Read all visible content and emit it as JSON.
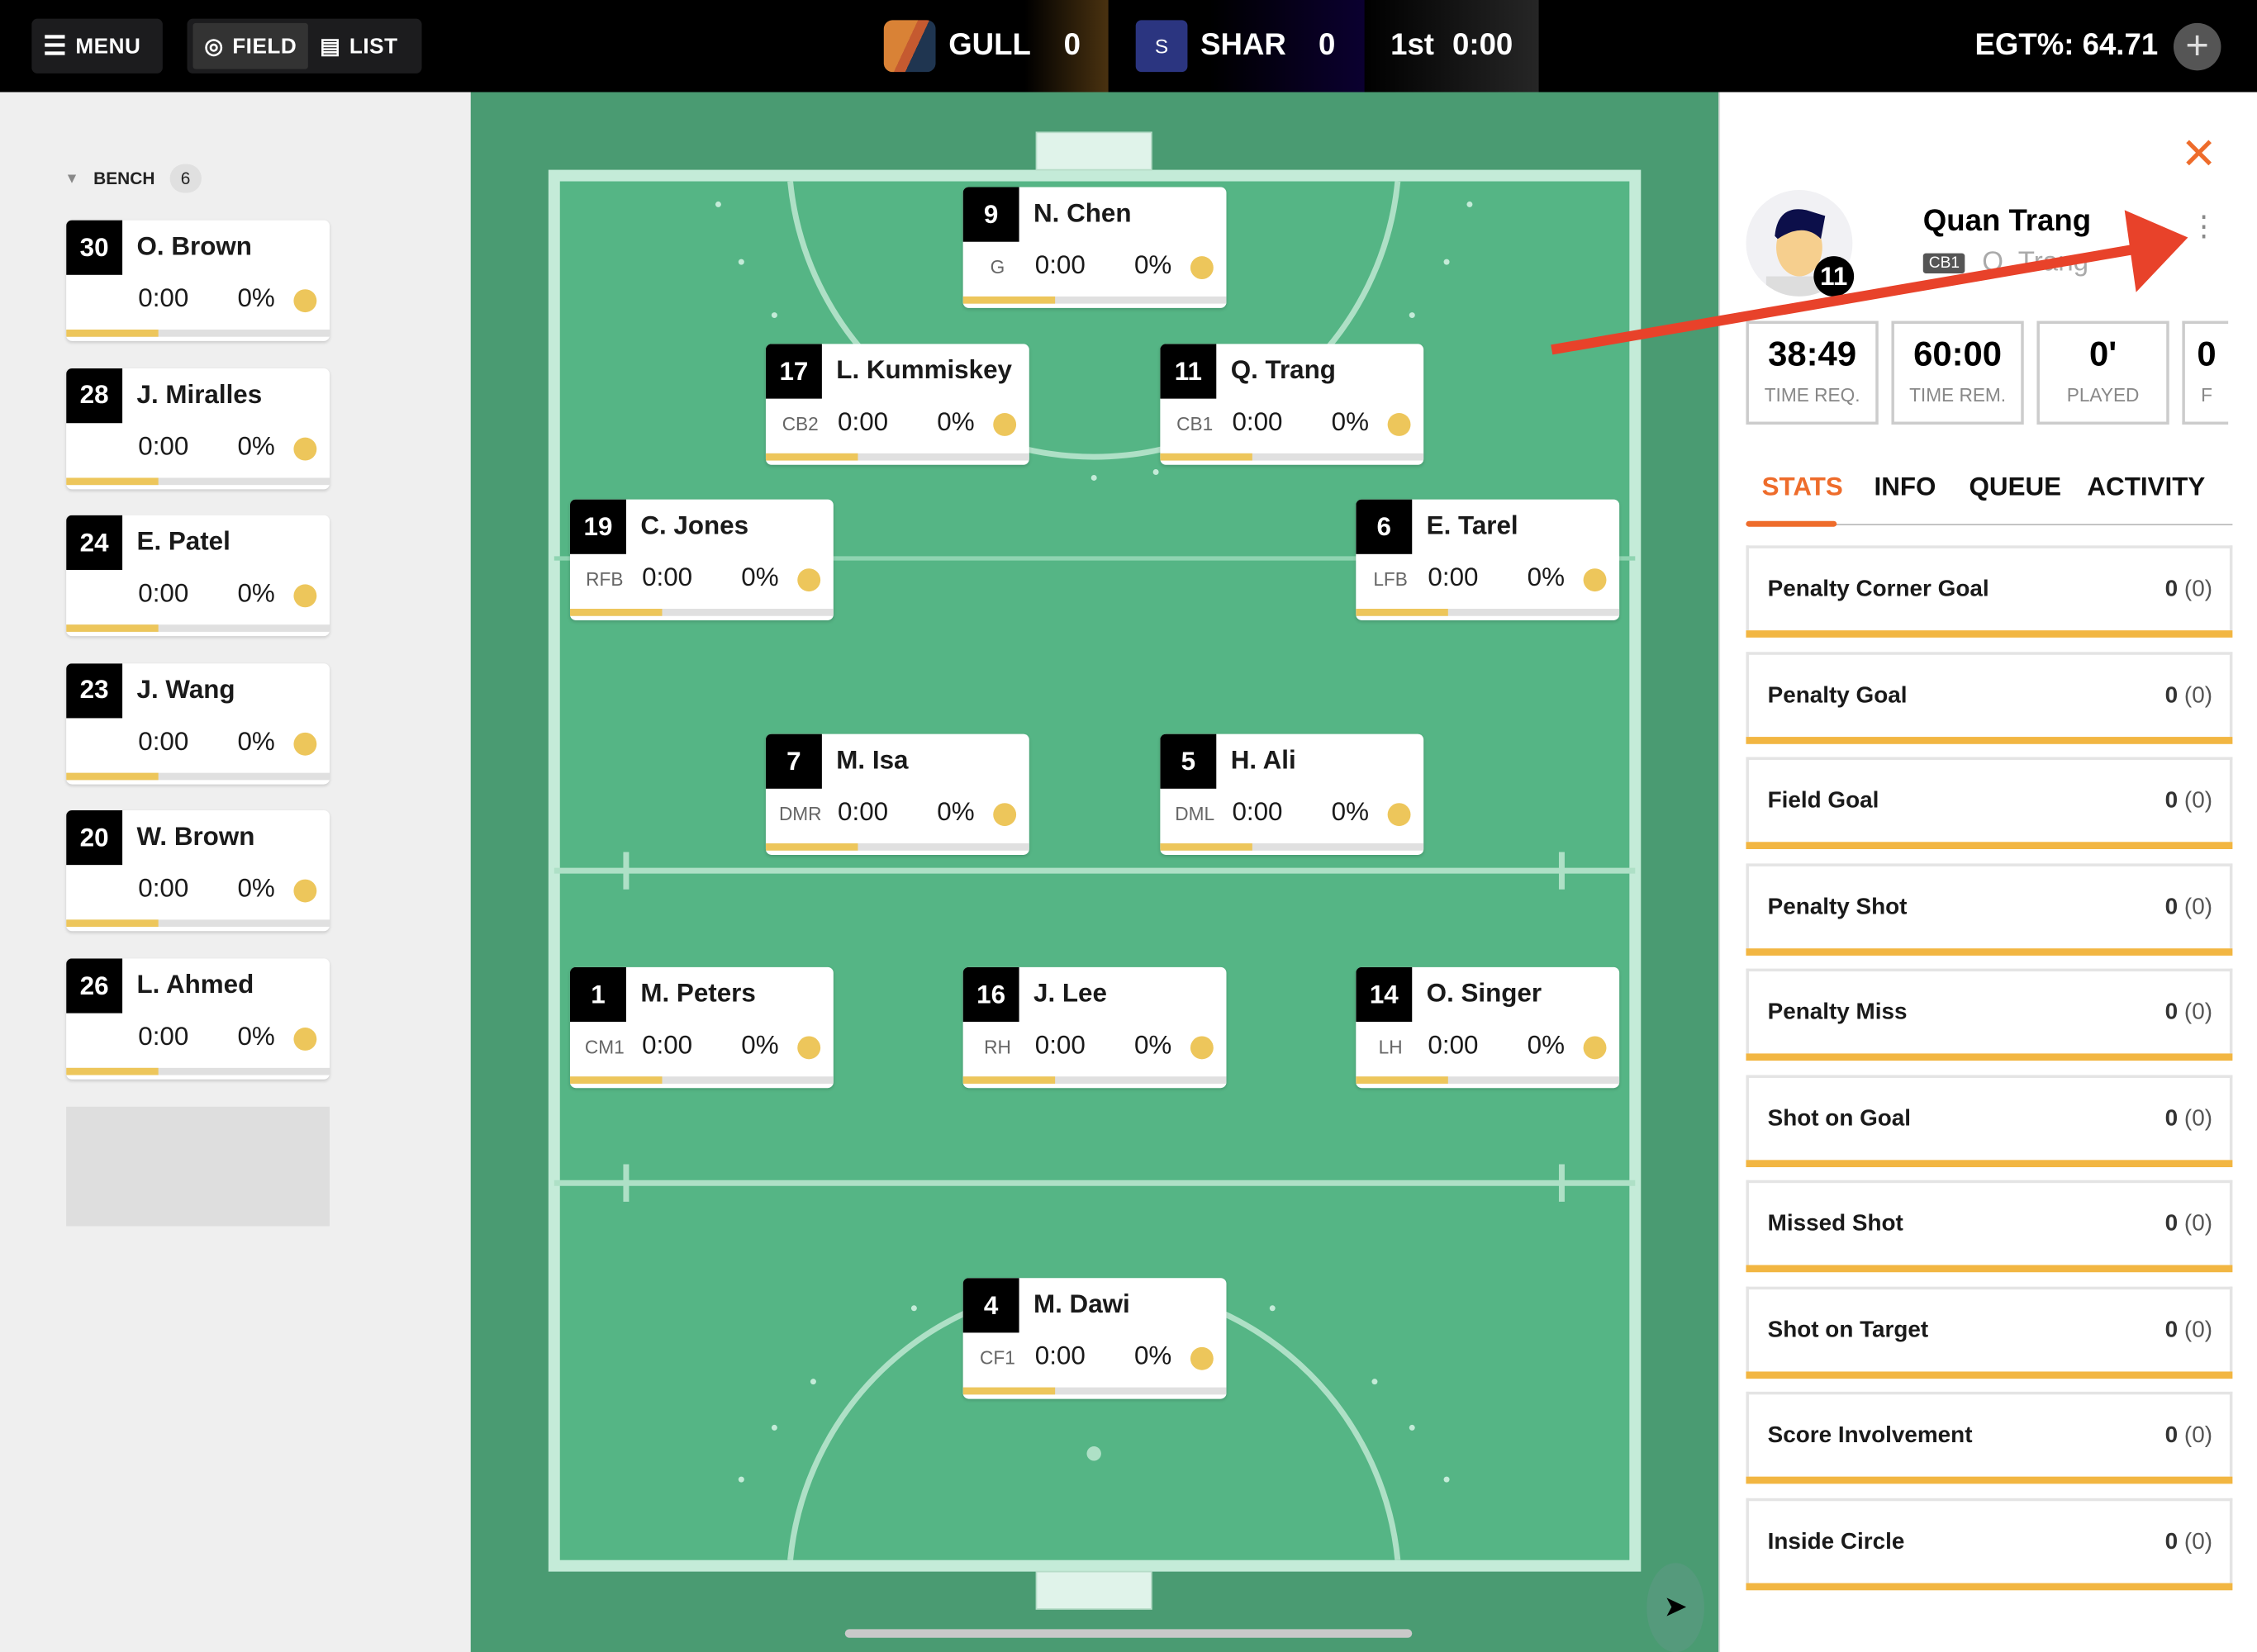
{
  "topbar": {
    "menu_label": "MENU",
    "field_label": "FIELD",
    "list_label": "LIST",
    "home_team": {
      "name": "GULL",
      "score": "0"
    },
    "away_team": {
      "name": "SHAR",
      "score": "0",
      "badge": "S"
    },
    "period": "1st",
    "clock": "0:00",
    "egt": "EGT%: 64.71"
  },
  "bench": {
    "label": "BENCH",
    "count": "6",
    "players": [
      {
        "number": "30",
        "name": "O. Brown",
        "time": "0:00",
        "pct": "0%",
        "progress": 0.35
      },
      {
        "number": "28",
        "name": "J. Miralles",
        "time": "0:00",
        "pct": "0%",
        "progress": 0.35
      },
      {
        "number": "24",
        "name": "E. Patel",
        "time": "0:00",
        "pct": "0%",
        "progress": 0.35
      },
      {
        "number": "23",
        "name": "J. Wang",
        "time": "0:00",
        "pct": "0%",
        "progress": 0.35
      },
      {
        "number": "20",
        "name": "W. Brown",
        "time": "0:00",
        "pct": "0%",
        "progress": 0.35
      },
      {
        "number": "26",
        "name": "L. Ahmed",
        "time": "0:00",
        "pct": "0%",
        "progress": 0.35
      }
    ]
  },
  "field": {
    "players": [
      {
        "number": "9",
        "name": "N. Chen",
        "pos": "G",
        "time": "0:00",
        "pct": "0%",
        "progress": 0.35
      },
      {
        "number": "17",
        "name": "L. Kummiskey",
        "pos": "CB2",
        "time": "0:00",
        "pct": "0%",
        "progress": 0.35
      },
      {
        "number": "11",
        "name": "Q. Trang",
        "pos": "CB1",
        "time": "0:00",
        "pct": "0%",
        "progress": 0.35
      },
      {
        "number": "19",
        "name": "C. Jones",
        "pos": "RFB",
        "time": "0:00",
        "pct": "0%",
        "progress": 0.35
      },
      {
        "number": "6",
        "name": "E. Tarel",
        "pos": "LFB",
        "time": "0:00",
        "pct": "0%",
        "progress": 0.35
      },
      {
        "number": "7",
        "name": "M. Isa",
        "pos": "DMR",
        "time": "0:00",
        "pct": "0%",
        "progress": 0.35
      },
      {
        "number": "5",
        "name": "H. Ali",
        "pos": "DML",
        "time": "0:00",
        "pct": "0%",
        "progress": 0.35
      },
      {
        "number": "1",
        "name": "M. Peters",
        "pos": "CM1",
        "time": "0:00",
        "pct": "0%",
        "progress": 0.35
      },
      {
        "number": "16",
        "name": "J. Lee",
        "pos": "RH",
        "time": "0:00",
        "pct": "0%",
        "progress": 0.35
      },
      {
        "number": "14",
        "name": "O. Singer",
        "pos": "LH",
        "time": "0:00",
        "pct": "0%",
        "progress": 0.35
      },
      {
        "number": "4",
        "name": "M. Dawi",
        "pos": "CF1",
        "time": "0:00",
        "pct": "0%",
        "progress": 0.35
      }
    ]
  },
  "panel": {
    "name": "Quan Trang",
    "position": "CB1",
    "short_name": "Q. Trang",
    "number": "11",
    "boxes": [
      {
        "value": "38:49",
        "label": "TIME REQ."
      },
      {
        "value": "60:00",
        "label": "TIME REM."
      },
      {
        "value": "0'",
        "label": "PLAYED"
      },
      {
        "value": "0",
        "label": "F"
      }
    ],
    "tabs": [
      "STATS",
      "INFO",
      "QUEUE",
      "ACTIVITY"
    ],
    "active_tab": "STATS",
    "stats": [
      {
        "label": "Penalty Corner Goal",
        "value": "0",
        "total": "(0)"
      },
      {
        "label": "Penalty Goal",
        "value": "0",
        "total": "(0)"
      },
      {
        "label": "Field Goal",
        "value": "0",
        "total": "(0)"
      },
      {
        "label": "Penalty Shot",
        "value": "0",
        "total": "(0)"
      },
      {
        "label": "Penalty Miss",
        "value": "0",
        "total": "(0)"
      },
      {
        "label": "Shot on Goal",
        "value": "0",
        "total": "(0)"
      },
      {
        "label": "Missed Shot",
        "value": "0",
        "total": "(0)"
      },
      {
        "label": "Shot on Target",
        "value": "0",
        "total": "(0)"
      },
      {
        "label": "Score Involvement",
        "value": "0",
        "total": "(0)"
      },
      {
        "label": "Inside Circle",
        "value": "0",
        "total": "(0)"
      }
    ]
  },
  "colors": {
    "accent": "#ee6c2b",
    "progress": "#edc65b",
    "stat_bar": "#f2b642",
    "pitch": "#55b585",
    "annotation": "#e8422a"
  }
}
